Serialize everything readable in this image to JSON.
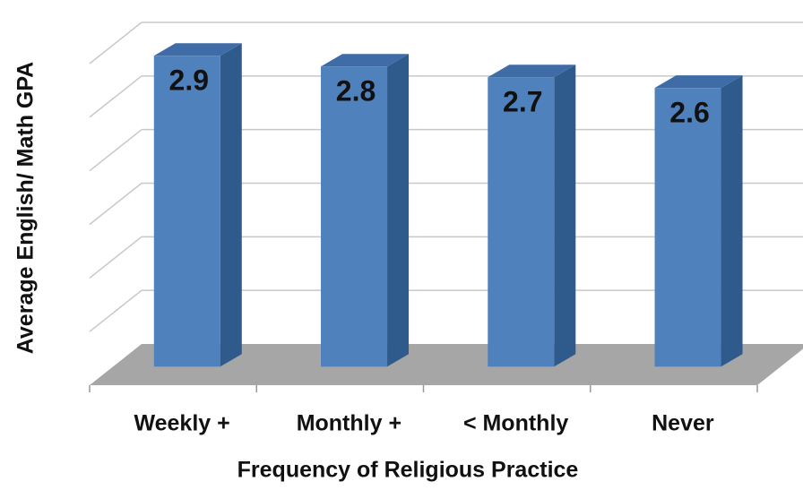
{
  "chart_data": {
    "type": "bar3d",
    "x_label": "Frequency of Religious Practice",
    "y_label": "Average English/ Math GPA",
    "categories": [
      "Weekly +",
      "Monthly +",
      "< Monthly",
      "Never"
    ],
    "values": [
      2.9,
      2.8,
      2.7,
      2.6
    ],
    "color": "#4f81bd",
    "ylim": [
      0,
      3
    ],
    "yticks": [
      0,
      0.5,
      1,
      1.5,
      2,
      2.5,
      3
    ],
    "grid": true
  }
}
